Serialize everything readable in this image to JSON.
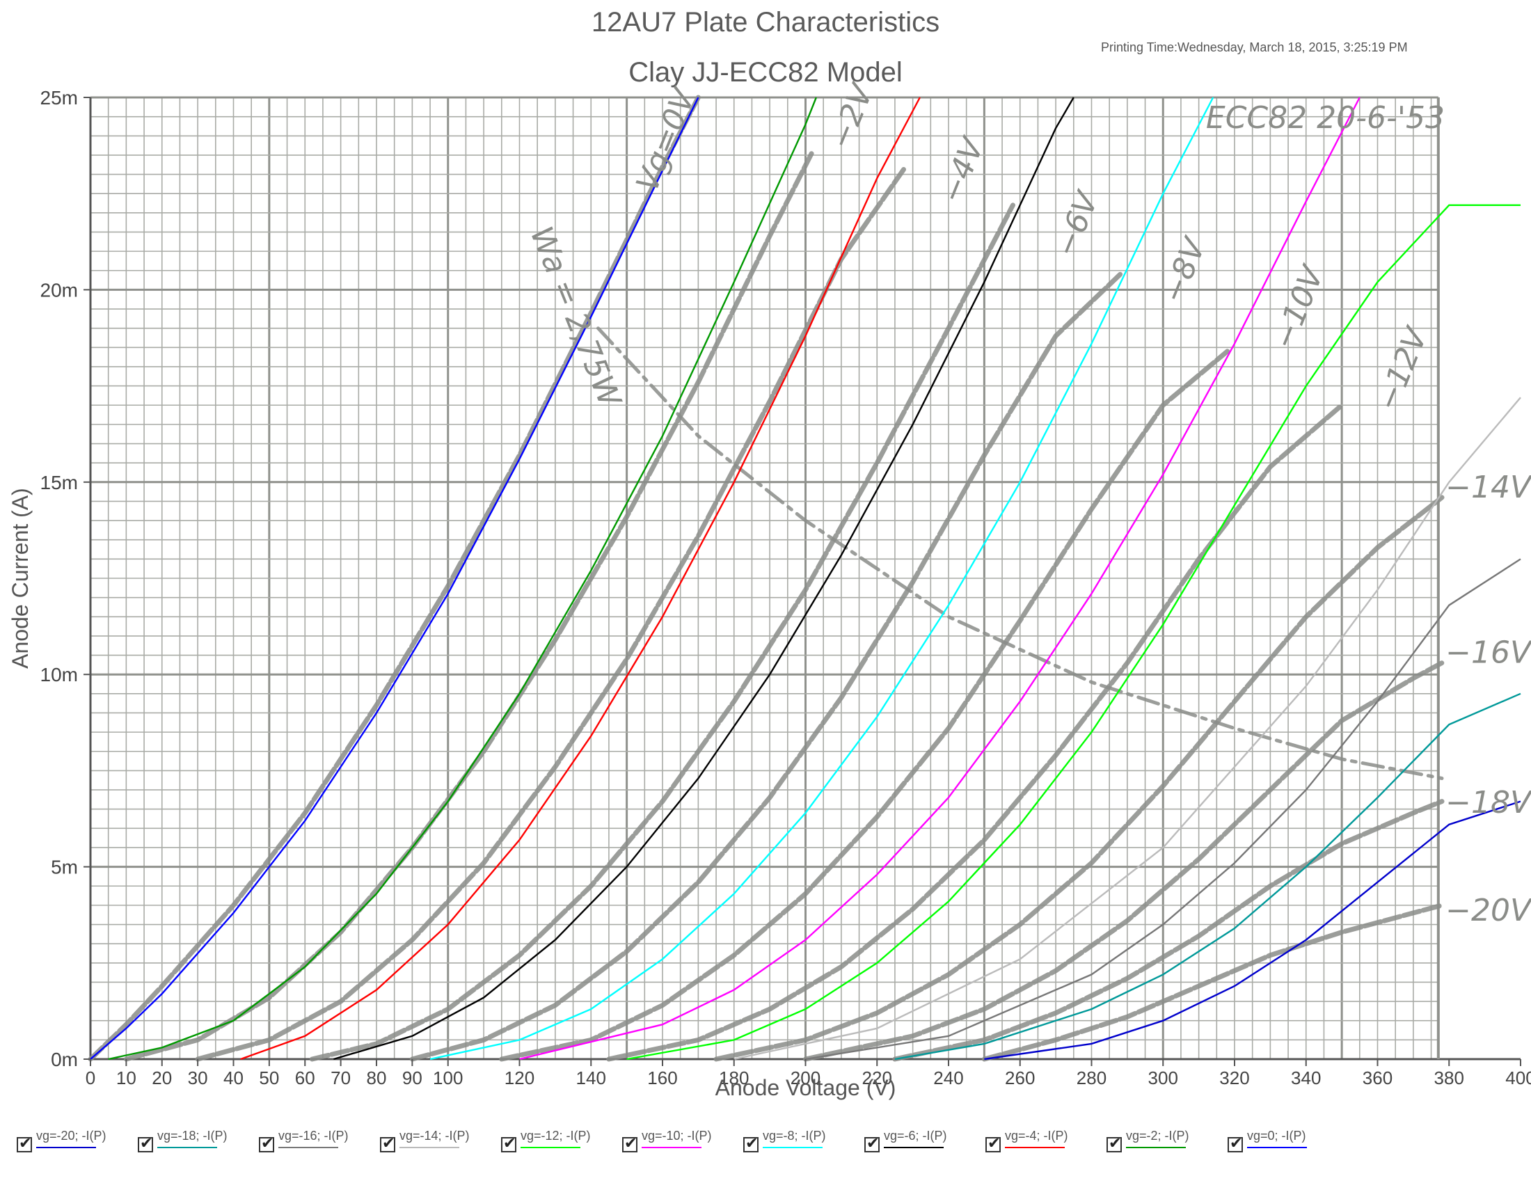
{
  "printing_time": "Printing Time:Wednesday, March 18, 2015, 3:25:19 PM",
  "chart_data": {
    "type": "line",
    "title": "12AU7 Plate Characteristics",
    "subtitle": "Clay JJ-ECC82 Model",
    "xlabel": "Anode Voltage (V)",
    "ylabel": "Anode Current (A)",
    "xlim": [
      0,
      400
    ],
    "ylim": [
      0,
      25
    ],
    "x_ticks": [
      {
        "v": 0,
        "label": "0"
      },
      {
        "v": 10,
        "label": "10"
      },
      {
        "v": 20,
        "label": "20"
      },
      {
        "v": 30,
        "label": "30"
      },
      {
        "v": 40,
        "label": "40"
      },
      {
        "v": 50,
        "label": "50"
      },
      {
        "v": 60,
        "label": "60"
      },
      {
        "v": 70,
        "label": "70"
      },
      {
        "v": 80,
        "label": "80"
      },
      {
        "v": 90,
        "label": "90"
      },
      {
        "v": 100,
        "label": "100"
      },
      {
        "v": 120,
        "label": "120"
      },
      {
        "v": 140,
        "label": "140"
      },
      {
        "v": 160,
        "label": "160"
      },
      {
        "v": 180,
        "label": "180"
      },
      {
        "v": 200,
        "label": "200"
      },
      {
        "v": 220,
        "label": "220"
      },
      {
        "v": 240,
        "label": "240"
      },
      {
        "v": 260,
        "label": "260"
      },
      {
        "v": 280,
        "label": "280"
      },
      {
        "v": 300,
        "label": "300"
      },
      {
        "v": 320,
        "label": "320"
      },
      {
        "v": 340,
        "label": "340"
      },
      {
        "v": 360,
        "label": "360"
      },
      {
        "v": 380,
        "label": "380"
      },
      {
        "v": 400,
        "label": "400"
      }
    ],
    "y_ticks": [
      {
        "v": 0,
        "label": "0m"
      },
      {
        "v": 5,
        "label": "5m"
      },
      {
        "v": 10,
        "label": "10m"
      },
      {
        "v": 15,
        "label": "15m"
      },
      {
        "v": 20,
        "label": "20m"
      },
      {
        "v": 25,
        "label": "25m"
      }
    ],
    "grid": true,
    "legend_placement": "bottom",
    "series": [
      {
        "name": "vg=-20; -I(P)",
        "color": "#0000cc",
        "points": [
          [
            250,
            0
          ],
          [
            280,
            0.4
          ],
          [
            300,
            1.0
          ],
          [
            320,
            1.9
          ],
          [
            340,
            3.1
          ],
          [
            360,
            4.6
          ],
          [
            380,
            6.1
          ],
          [
            400,
            6.7
          ]
        ]
      },
      {
        "name": "vg=-18; -I(P)",
        "color": "#009999",
        "points": [
          [
            225,
            0
          ],
          [
            250,
            0.4
          ],
          [
            280,
            1.3
          ],
          [
            300,
            2.2
          ],
          [
            320,
            3.4
          ],
          [
            340,
            5.0
          ],
          [
            360,
            6.8
          ],
          [
            380,
            8.7
          ],
          [
            400,
            9.5
          ]
        ]
      },
      {
        "name": "vg=-16; -I(P)",
        "color": "#777777",
        "points": [
          [
            200,
            0
          ],
          [
            240,
            0.6
          ],
          [
            280,
            2.2
          ],
          [
            300,
            3.5
          ],
          [
            320,
            5.1
          ],
          [
            340,
            7.0
          ],
          [
            360,
            9.3
          ],
          [
            380,
            11.8
          ],
          [
            400,
            13.0
          ]
        ]
      },
      {
        "name": "vg=-14; -I(P)",
        "color": "#bbbbbb",
        "points": [
          [
            180,
            0
          ],
          [
            220,
            0.8
          ],
          [
            260,
            2.6
          ],
          [
            300,
            5.5
          ],
          [
            340,
            9.7
          ],
          [
            360,
            12.2
          ],
          [
            380,
            15.0
          ],
          [
            400,
            17.2
          ]
        ]
      },
      {
        "name": "vg=-12; -I(P)",
        "color": "#00ff00",
        "points": [
          [
            150,
            0
          ],
          [
            180,
            0.5
          ],
          [
            200,
            1.3
          ],
          [
            220,
            2.5
          ],
          [
            240,
            4.1
          ],
          [
            260,
            6.1
          ],
          [
            280,
            8.5
          ],
          [
            300,
            11.3
          ],
          [
            320,
            14.4
          ],
          [
            340,
            17.5
          ],
          [
            360,
            20.2
          ],
          [
            380,
            22.2
          ],
          [
            400,
            22.2
          ]
        ]
      },
      {
        "name": "vg=-10; -I(P)",
        "color": "#ff00ff",
        "points": [
          [
            120,
            0
          ],
          [
            160,
            0.9
          ],
          [
            180,
            1.8
          ],
          [
            200,
            3.1
          ],
          [
            220,
            4.8
          ],
          [
            240,
            6.8
          ],
          [
            260,
            9.3
          ],
          [
            280,
            12.1
          ],
          [
            300,
            15.2
          ],
          [
            320,
            18.6
          ],
          [
            340,
            22.3
          ],
          [
            355,
            25
          ]
        ]
      },
      {
        "name": "vg=-8; -I(P)",
        "color": "#00ffff",
        "points": [
          [
            95,
            0
          ],
          [
            120,
            0.5
          ],
          [
            140,
            1.3
          ],
          [
            160,
            2.6
          ],
          [
            180,
            4.3
          ],
          [
            200,
            6.4
          ],
          [
            220,
            8.9
          ],
          [
            240,
            11.8
          ],
          [
            260,
            15.0
          ],
          [
            280,
            18.6
          ],
          [
            300,
            22.5
          ],
          [
            314,
            25
          ]
        ]
      },
      {
        "name": "vg=-6; -I(P)",
        "color": "#000000",
        "points": [
          [
            68,
            0
          ],
          [
            90,
            0.6
          ],
          [
            110,
            1.6
          ],
          [
            130,
            3.1
          ],
          [
            150,
            5.0
          ],
          [
            170,
            7.3
          ],
          [
            190,
            10.0
          ],
          [
            210,
            13.1
          ],
          [
            230,
            16.5
          ],
          [
            250,
            20.2
          ],
          [
            270,
            24.2
          ],
          [
            275,
            25
          ]
        ]
      },
      {
        "name": "vg=-4; -I(P)",
        "color": "#ff0000",
        "points": [
          [
            42,
            0
          ],
          [
            60,
            0.6
          ],
          [
            80,
            1.8
          ],
          [
            100,
            3.5
          ],
          [
            120,
            5.7
          ],
          [
            140,
            8.4
          ],
          [
            160,
            11.5
          ],
          [
            180,
            15.0
          ],
          [
            200,
            18.8
          ],
          [
            220,
            22.9
          ],
          [
            232,
            25
          ]
        ]
      },
      {
        "name": "vg=-2; -I(P)",
        "color": "#009900",
        "points": [
          [
            5,
            0
          ],
          [
            20,
            0.3
          ],
          [
            40,
            1.0
          ],
          [
            60,
            2.4
          ],
          [
            80,
            4.3
          ],
          [
            100,
            6.7
          ],
          [
            120,
            9.5
          ],
          [
            140,
            12.7
          ],
          [
            160,
            16.2
          ],
          [
            180,
            20.2
          ],
          [
            200,
            24.3
          ],
          [
            203,
            25
          ]
        ]
      },
      {
        "name": "vg=0; -I(P)",
        "color": "#0000ff",
        "points": [
          [
            0,
            0
          ],
          [
            10,
            0.8
          ],
          [
            20,
            1.7
          ],
          [
            40,
            3.8
          ],
          [
            60,
            6.2
          ],
          [
            80,
            9.0
          ],
          [
            100,
            12.1
          ],
          [
            120,
            15.6
          ],
          [
            140,
            19.3
          ],
          [
            160,
            23.1
          ],
          [
            170,
            25
          ]
        ]
      }
    ],
    "image_annotations": [
      {
        "text": "ECC82  20-6-'53",
        "x": 312,
        "y": 24.2,
        "rot": 0
      },
      {
        "text": "Vg=0V",
        "x": 158,
        "y": 22.5,
        "rot": -68
      },
      {
        "text": "Wa = 2,75W",
        "x": 123,
        "y": 21.5,
        "rot": 68
      },
      {
        "text": "−2V",
        "x": 212,
        "y": 23.6,
        "rot": -68
      },
      {
        "text": "−4V",
        "x": 243,
        "y": 22.2,
        "rot": -68
      },
      {
        "text": "−6V",
        "x": 275,
        "y": 20.8,
        "rot": -68
      },
      {
        "text": "−8V",
        "x": 305,
        "y": 19.6,
        "rot": -68
      },
      {
        "text": "−10V",
        "x": 336,
        "y": 18.4,
        "rot": -68
      },
      {
        "text": "−12V",
        "x": 365,
        "y": 16.8,
        "rot": -68
      },
      {
        "text": "−14V",
        "x": 379,
        "y": 14.6,
        "rot": 0
      },
      {
        "text": "−16V",
        "x": 379,
        "y": 10.3,
        "rot": 0
      },
      {
        "text": "−18V",
        "x": 379,
        "y": 6.4,
        "rot": 0
      },
      {
        "text": "−20V",
        "x": 379,
        "y": 3.6,
        "rot": 0
      }
    ],
    "image_curves": [
      {
        "name": "Wa",
        "points": [
          [
            142,
            19.0
          ],
          [
            170,
            16.2
          ],
          [
            200,
            14.0
          ],
          [
            240,
            11.5
          ],
          [
            280,
            9.8
          ],
          [
            320,
            8.6
          ],
          [
            350,
            7.8
          ],
          [
            378,
            7.3
          ]
        ]
      },
      {
        "name": "Vg=0V",
        "points": [
          [
            0,
            0
          ],
          [
            10,
            0.9
          ],
          [
            20,
            1.9
          ],
          [
            40,
            4.0
          ],
          [
            60,
            6.4
          ],
          [
            80,
            9.2
          ],
          [
            100,
            12.3
          ],
          [
            120,
            15.7
          ],
          [
            140,
            19.4
          ],
          [
            160,
            23.2
          ],
          [
            170,
            25
          ]
        ]
      },
      {
        "name": "−2V",
        "points": [
          [
            10,
            0
          ],
          [
            30,
            0.5
          ],
          [
            50,
            1.6
          ],
          [
            70,
            3.3
          ],
          [
            90,
            5.5
          ],
          [
            110,
            8.0
          ],
          [
            130,
            10.9
          ],
          [
            150,
            14.1
          ],
          [
            170,
            17.6
          ],
          [
            190,
            21.4
          ],
          [
            202,
            23.6
          ]
        ]
      },
      {
        "name": "−4V",
        "points": [
          [
            30,
            0
          ],
          [
            50,
            0.5
          ],
          [
            70,
            1.5
          ],
          [
            90,
            3.1
          ],
          [
            110,
            5.1
          ],
          [
            130,
            7.6
          ],
          [
            150,
            10.4
          ],
          [
            170,
            13.6
          ],
          [
            190,
            17.1
          ],
          [
            210,
            20.8
          ],
          [
            228,
            23.2
          ]
        ]
      },
      {
        "name": "−6V",
        "points": [
          [
            62,
            0
          ],
          [
            80,
            0.4
          ],
          [
            100,
            1.3
          ],
          [
            120,
            2.7
          ],
          [
            140,
            4.5
          ],
          [
            160,
            6.7
          ],
          [
            180,
            9.3
          ],
          [
            200,
            12.2
          ],
          [
            220,
            15.5
          ],
          [
            240,
            19.0
          ],
          [
            258,
            22.2
          ]
        ]
      },
      {
        "name": "−8V",
        "points": [
          [
            90,
            0
          ],
          [
            110,
            0.5
          ],
          [
            130,
            1.4
          ],
          [
            150,
            2.8
          ],
          [
            170,
            4.6
          ],
          [
            190,
            6.8
          ],
          [
            210,
            9.4
          ],
          [
            230,
            12.4
          ],
          [
            250,
            15.7
          ],
          [
            270,
            18.8
          ],
          [
            288,
            20.4
          ]
        ]
      },
      {
        "name": "−10V",
        "points": [
          [
            115,
            0
          ],
          [
            140,
            0.5
          ],
          [
            160,
            1.4
          ],
          [
            180,
            2.7
          ],
          [
            200,
            4.3
          ],
          [
            220,
            6.3
          ],
          [
            240,
            8.6
          ],
          [
            260,
            11.4
          ],
          [
            280,
            14.3
          ],
          [
            300,
            17.0
          ],
          [
            318,
            18.4
          ]
        ]
      },
      {
        "name": "−12V",
        "points": [
          [
            145,
            0
          ],
          [
            170,
            0.5
          ],
          [
            190,
            1.3
          ],
          [
            210,
            2.4
          ],
          [
            230,
            3.9
          ],
          [
            250,
            5.7
          ],
          [
            270,
            7.9
          ],
          [
            290,
            10.3
          ],
          [
            310,
            13.0
          ],
          [
            330,
            15.4
          ],
          [
            350,
            17.0
          ]
        ]
      },
      {
        "name": "−14V",
        "points": [
          [
            175,
            0
          ],
          [
            200,
            0.5
          ],
          [
            220,
            1.2
          ],
          [
            240,
            2.2
          ],
          [
            260,
            3.5
          ],
          [
            280,
            5.1
          ],
          [
            300,
            7.1
          ],
          [
            320,
            9.3
          ],
          [
            340,
            11.5
          ],
          [
            360,
            13.3
          ],
          [
            378,
            14.6
          ]
        ]
      },
      {
        "name": "−16V",
        "points": [
          [
            200,
            0
          ],
          [
            230,
            0.6
          ],
          [
            250,
            1.3
          ],
          [
            270,
            2.3
          ],
          [
            290,
            3.6
          ],
          [
            310,
            5.2
          ],
          [
            330,
            7.0
          ],
          [
            350,
            8.8
          ],
          [
            370,
            9.9
          ],
          [
            378,
            10.3
          ]
        ]
      },
      {
        "name": "−18V",
        "points": [
          [
            225,
            0
          ],
          [
            250,
            0.5
          ],
          [
            270,
            1.2
          ],
          [
            290,
            2.1
          ],
          [
            310,
            3.2
          ],
          [
            330,
            4.5
          ],
          [
            350,
            5.6
          ],
          [
            370,
            6.4
          ],
          [
            378,
            6.7
          ]
        ]
      },
      {
        "name": "−20V",
        "points": [
          [
            250,
            0
          ],
          [
            270,
            0.5
          ],
          [
            290,
            1.1
          ],
          [
            310,
            1.9
          ],
          [
            330,
            2.7
          ],
          [
            350,
            3.3
          ],
          [
            370,
            3.8
          ],
          [
            378,
            4.0
          ]
        ]
      }
    ]
  }
}
